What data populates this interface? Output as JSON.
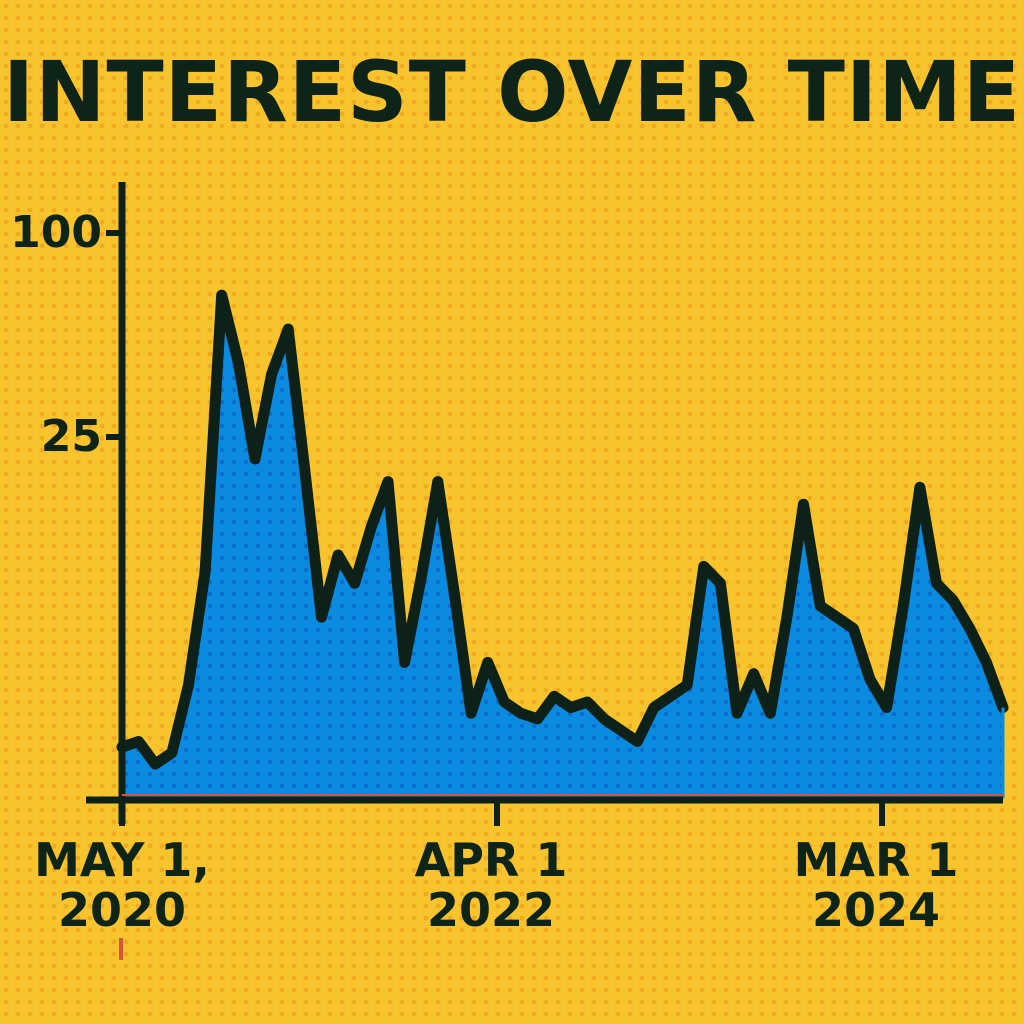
{
  "title": "INTEREST OVER TIME",
  "chart_data": {
    "type": "area",
    "title": "INTEREST OVER TIME",
    "xlabel": "",
    "ylabel": "",
    "x_ticks": [
      {
        "line1": "MAY 1,",
        "line2": "2020"
      },
      {
        "line1": "APR 1",
        "line2": "2022"
      },
      {
        "line1": "MAR 1",
        "line2": "2024"
      }
    ],
    "y_ticks": [
      "100",
      "25"
    ],
    "x_start": "2020-05-01",
    "x_end": "2024-10-01",
    "x": [
      "2020-05",
      "2020-06",
      "2020-07",
      "2020-08",
      "2020-09",
      "2020-10",
      "2020-11",
      "2020-12",
      "2021-01",
      "2021-02",
      "2021-03",
      "2021-04",
      "2021-05",
      "2021-06",
      "2021-07",
      "2021-08",
      "2021-09",
      "2021-10",
      "2021-11",
      "2021-12",
      "2022-01",
      "2022-02",
      "2022-03",
      "2022-04",
      "2022-05",
      "2022-06",
      "2022-07",
      "2022-08",
      "2022-09",
      "2022-10",
      "2022-11",
      "2022-12",
      "2023-01",
      "2023-02",
      "2023-03",
      "2023-04",
      "2023-05",
      "2023-06",
      "2023-07",
      "2023-08",
      "2023-09",
      "2023-10",
      "2023-11",
      "2023-12",
      "2024-01",
      "2024-02",
      "2024-03",
      "2024-04",
      "2024-05",
      "2024-06",
      "2024-07",
      "2024-08",
      "2024-09",
      "2024-10"
    ],
    "values": [
      9,
      10,
      6,
      8,
      20,
      40,
      89,
      77,
      60,
      75,
      83,
      58,
      32,
      43,
      38,
      48,
      56,
      24,
      39,
      56,
      36,
      15,
      24,
      17,
      15,
      14,
      18,
      16,
      17,
      14,
      12,
      10,
      16,
      18,
      20,
      41,
      38,
      15,
      22,
      15,
      32,
      52,
      34,
      32,
      30,
      21,
      16,
      34,
      55,
      38,
      35,
      30,
      24,
      16
    ],
    "ylim": [
      0,
      100
    ],
    "colors": {
      "fill": "#0b8be0",
      "line": "#0e2118",
      "background": "#f7c42e",
      "baseline_accent": "#d6553a"
    },
    "grid": false
  }
}
